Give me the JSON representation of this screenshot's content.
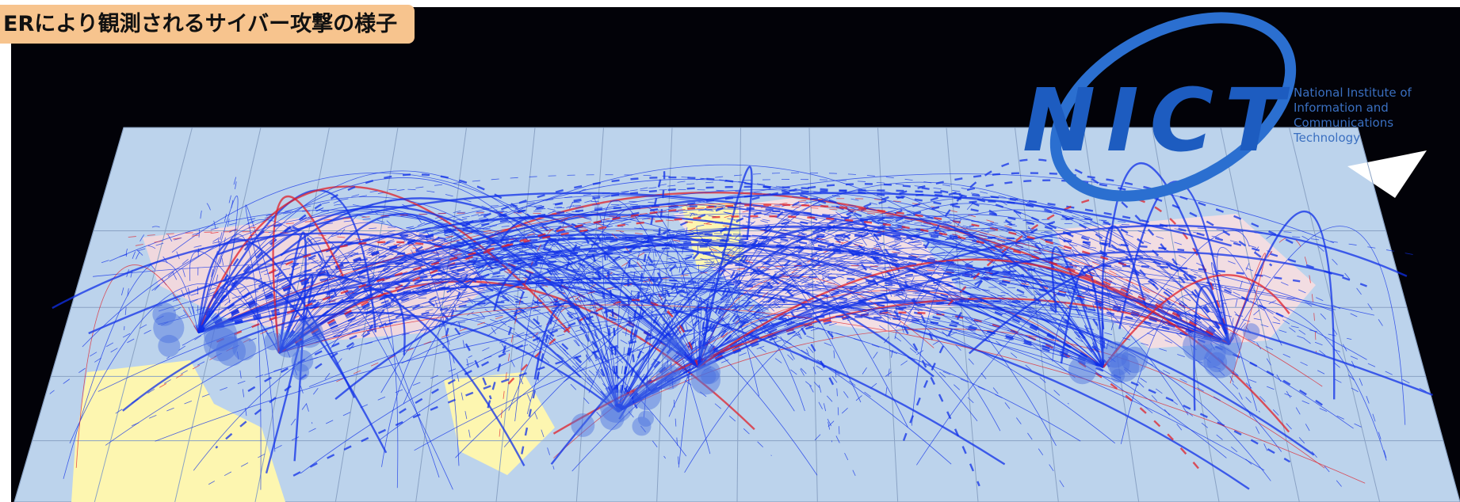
{
  "header": {
    "title": "ERにより観測されるサイバー攻撃の様子"
  },
  "logo": {
    "mark": "NICT",
    "lines": [
      "National Institute of",
      "Information and",
      "Communications",
      "Technology"
    ]
  }
}
